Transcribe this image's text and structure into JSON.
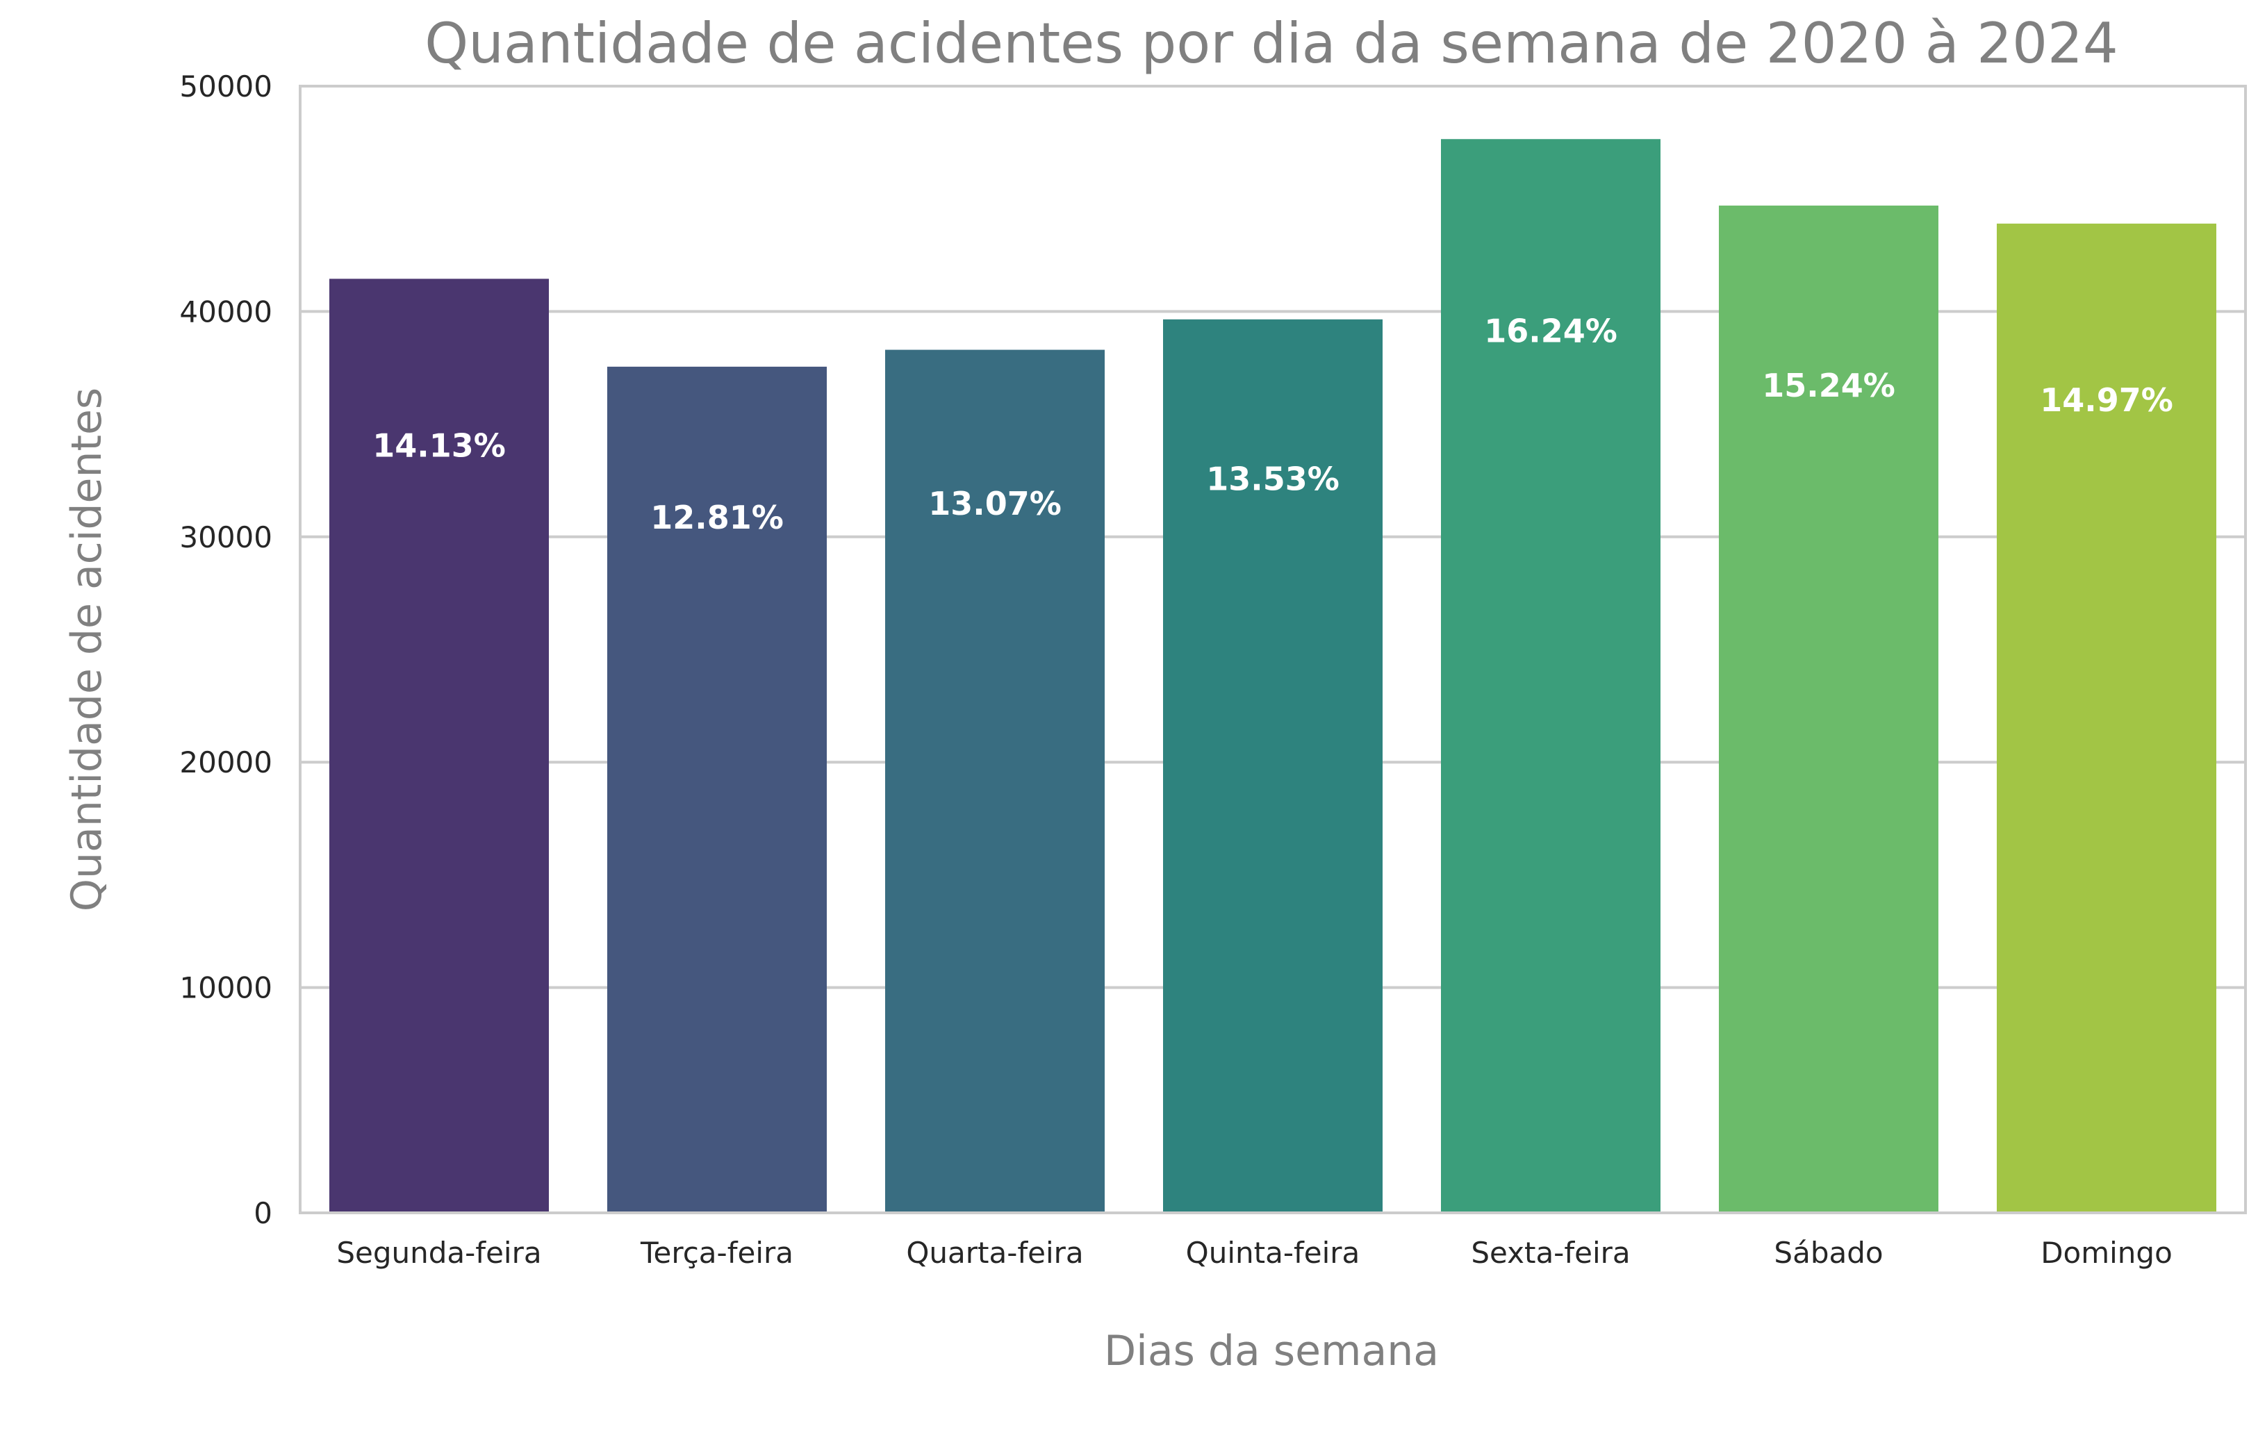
{
  "chart_data": {
    "type": "bar",
    "title": "Quantidade de acidentes por dia da semana de 2020 à 2024",
    "xlabel": "Dias da semana",
    "ylabel": "Quantidade de acidentes",
    "categories": [
      "Segunda-feira",
      "Terça-feira",
      "Quarta-feira",
      "Quinta-feira",
      "Sexta-feira",
      "Sábado",
      "Domingo"
    ],
    "values": [
      41450,
      37550,
      38300,
      39650,
      47650,
      44700,
      43900
    ],
    "percent_labels": [
      "14.13%",
      "12.81%",
      "13.07%",
      "13.53%",
      "16.24%",
      "15.24%",
      "14.97%"
    ],
    "colors": [
      "#4a366f",
      "#45577e",
      "#396d81",
      "#2e837e",
      "#3b9e7b",
      "#6bbb6a",
      "#a2c545"
    ],
    "ylim": [
      0,
      50000
    ],
    "yticks": [
      0,
      10000,
      20000,
      30000,
      40000,
      50000
    ],
    "grid": true,
    "text_color": "#808080",
    "tick_color": "#262626",
    "grid_color": "#cccccc"
  }
}
